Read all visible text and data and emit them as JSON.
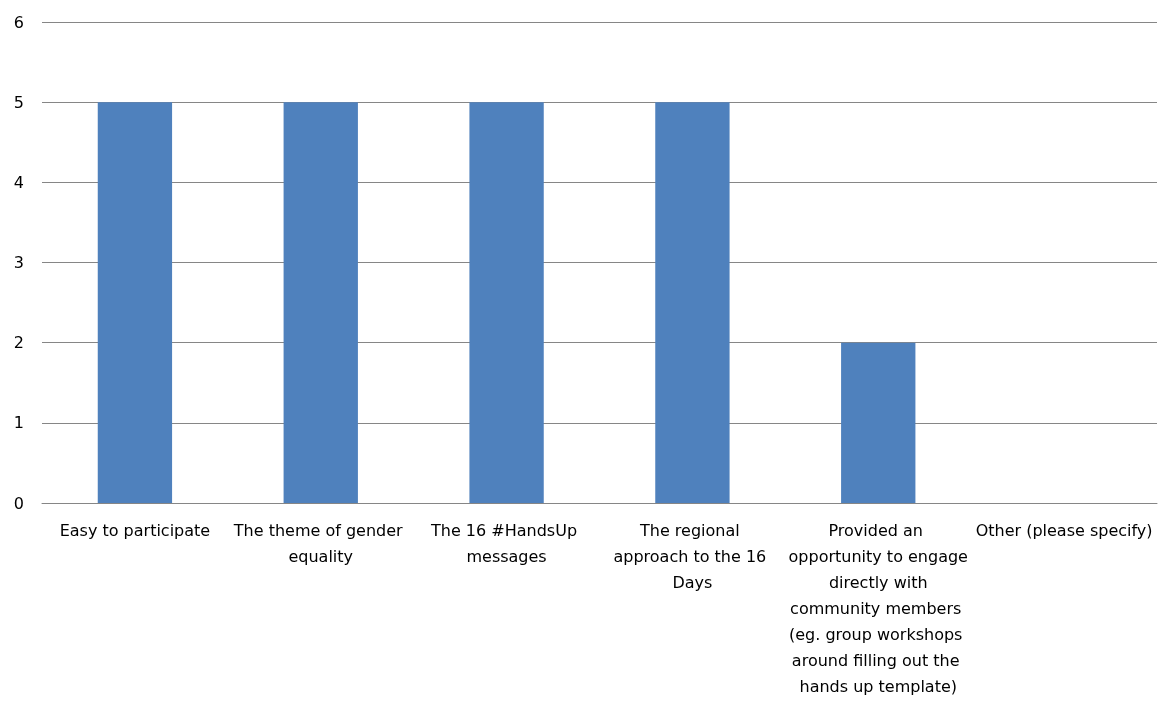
{
  "chart_data": {
    "type": "bar",
    "categories": [
      "Easy to participate",
      "The theme of gender equality",
      "The 16 #HandsUp messages",
      "The regional approach to the 16 Days",
      "Provided an opportunity to engage directly with community members (eg. group workshops around filling out the hands up template)",
      "Other (please specify)"
    ],
    "values": [
      5,
      5,
      5,
      5,
      2,
      0
    ],
    "color": "#4f81bd",
    "ylim": [
      0,
      6
    ],
    "yticks": [
      0,
      1,
      2,
      3,
      4,
      5,
      6
    ],
    "grid": "y"
  }
}
